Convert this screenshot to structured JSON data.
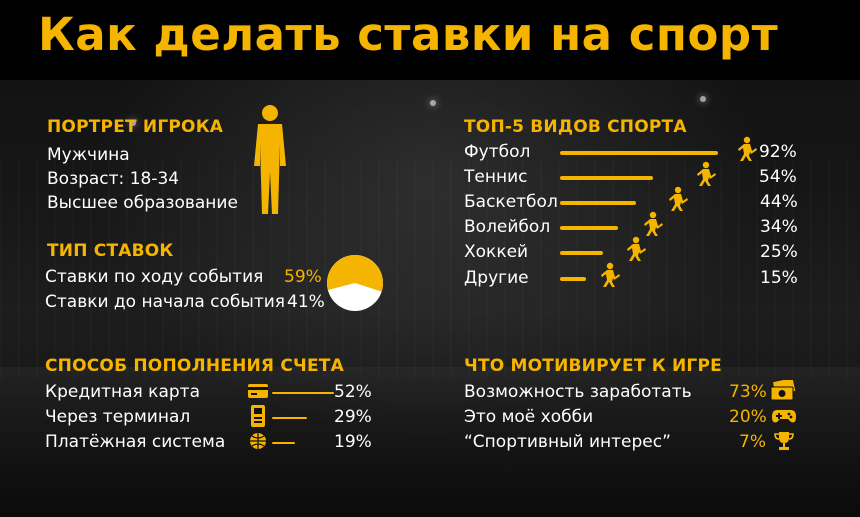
{
  "title": "Как делать ставки на спорт",
  "portrait": {
    "heading": "ПОРТРЕТ ИГРОКА",
    "gender": "Мужчина",
    "age": "Возраст: 18-34",
    "education": "Высшее образование",
    "icon": "man-silhouette-icon"
  },
  "bet_types": {
    "heading": "ТИП СТАВОК",
    "items": [
      {
        "label": "Ставки по ходу события",
        "percent": "59%",
        "value": 59
      },
      {
        "label": "Ставки до начала события",
        "percent": "41%",
        "value": 41
      }
    ],
    "colors": {
      "primary": "#f5b400",
      "secondary": "#ffffff"
    }
  },
  "top_sports": {
    "heading": "ТОП-5 ВИДОВ СПОРТА",
    "items": [
      {
        "label": "Футбол",
        "percent": "92%",
        "value": 92,
        "icon": "football-player-icon"
      },
      {
        "label": "Теннис",
        "percent": "54%",
        "value": 54,
        "icon": "tennis-player-icon"
      },
      {
        "label": "Баскетбол",
        "percent": "44%",
        "value": 44,
        "icon": "basketball-player-icon"
      },
      {
        "label": "Волейбол",
        "percent": "34%",
        "value": 34,
        "icon": "volleyball-player-icon"
      },
      {
        "label": "Хоккей",
        "percent": "25%",
        "value": 25,
        "icon": "hockey-player-icon"
      },
      {
        "label": "Другие",
        "percent": "15%",
        "value": 15,
        "icon": "runner-icon"
      }
    ]
  },
  "payment": {
    "heading": "СПОСОБ ПОПОЛНЕНИЯ СЧЕТА",
    "items": [
      {
        "label": "Кредитная карта",
        "percent": "52%",
        "value": 52,
        "icon": "credit-card-icon"
      },
      {
        "label": "Через терминал",
        "percent": "29%",
        "value": 29,
        "icon": "terminal-icon"
      },
      {
        "label": "Платёжная система",
        "percent": "19%",
        "value": 19,
        "icon": "globe-payment-icon"
      }
    ]
  },
  "motivation": {
    "heading": "ЧТО МОТИВИРУЕТ К ИГРЕ",
    "items": [
      {
        "label": "Возможность заработать",
        "percent": "73%",
        "value": 73,
        "icon": "money-icon"
      },
      {
        "label": "Это моё хобби",
        "percent": "20%",
        "value": 20,
        "icon": "gamepad-icon"
      },
      {
        "label": "“Спортивный интерес”",
        "percent": "7%",
        "value": 7,
        "icon": "trophy-icon"
      }
    ]
  },
  "accent_color": "#f5b400"
}
